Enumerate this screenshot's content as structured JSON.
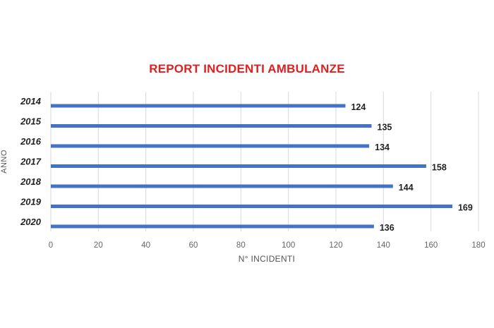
{
  "colors": {
    "title": "#e02020",
    "bar": "#4472c4",
    "grid": "#d9d9d9"
  },
  "chart_data": {
    "type": "bar",
    "orientation": "horizontal",
    "title": "REPORT INCIDENTI AMBULANZE",
    "xlabel": "N° INCIDENTI",
    "ylabel": "ANNO",
    "categories": [
      "2014",
      "2015",
      "2016",
      "2017",
      "2018",
      "2019",
      "2020"
    ],
    "values": [
      124,
      135,
      134,
      158,
      144,
      169,
      136
    ],
    "xlim": [
      0,
      180
    ],
    "xticks": [
      0,
      20,
      40,
      60,
      80,
      100,
      120,
      140,
      160,
      180
    ],
    "grid": "vertical",
    "data_labels": true,
    "legend": "none"
  }
}
